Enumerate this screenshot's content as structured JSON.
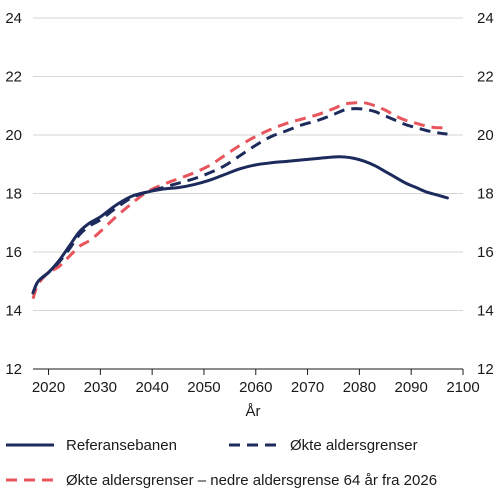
{
  "chart_data": {
    "type": "line",
    "xlabel": "År",
    "ylabel": "",
    "xlim": [
      2017,
      2100
    ],
    "ylim": [
      12,
      24
    ],
    "x_ticks": [
      2020,
      2030,
      2040,
      2050,
      2060,
      2070,
      2080,
      2090,
      2100
    ],
    "y_ticks": [
      12,
      14,
      16,
      18,
      20,
      22,
      24
    ],
    "grid": "horizontal",
    "legend_position": "bottom",
    "series": [
      {
        "name": "Referansebanen",
        "color": "#1c2a5c",
        "dash": "solid",
        "x": [
          2017,
          2018,
          2020,
          2022,
          2024,
          2026,
          2028,
          2030,
          2033,
          2036,
          2039,
          2042,
          2045,
          2048,
          2051,
          2054,
          2057,
          2060,
          2063,
          2066,
          2069,
          2072,
          2075,
          2077,
          2079,
          2081,
          2083,
          2085,
          2087,
          2089,
          2091,
          2093,
          2095,
          2097
        ],
        "y": [
          14.6,
          15.0,
          15.3,
          15.7,
          16.2,
          16.7,
          17.0,
          17.2,
          17.6,
          17.9,
          18.05,
          18.15,
          18.2,
          18.3,
          18.45,
          18.65,
          18.85,
          18.98,
          19.05,
          19.1,
          19.15,
          19.2,
          19.25,
          19.25,
          19.2,
          19.1,
          18.95,
          18.75,
          18.55,
          18.35,
          18.2,
          18.05,
          17.95,
          17.85
        ]
      },
      {
        "name": "Økte aldersgrenser",
        "color": "#1c2a5c",
        "dash": "dashed",
        "x": [
          2017,
          2018,
          2020,
          2022,
          2024,
          2026,
          2028,
          2030,
          2033,
          2036,
          2039,
          2042,
          2045,
          2048,
          2051,
          2054,
          2057,
          2060,
          2063,
          2066,
          2069,
          2072,
          2075,
          2077,
          2079,
          2081,
          2083,
          2085,
          2087,
          2089,
          2091,
          2093,
          2095,
          2097
        ],
        "y": [
          14.6,
          15.0,
          15.3,
          15.65,
          16.1,
          16.6,
          16.9,
          17.1,
          17.5,
          17.85,
          18.05,
          18.2,
          18.35,
          18.5,
          18.7,
          18.95,
          19.3,
          19.65,
          19.95,
          20.15,
          20.35,
          20.5,
          20.7,
          20.85,
          20.9,
          20.88,
          20.8,
          20.65,
          20.5,
          20.35,
          20.25,
          20.15,
          20.08,
          20.03
        ]
      },
      {
        "name": "Økte aldersgrenser – nedre aldersgrense 64 år fra 2026",
        "color": "#e8555c",
        "dash": "dashed",
        "x": [
          2017,
          2018,
          2020,
          2022,
          2024,
          2026,
          2028,
          2030,
          2033,
          2036,
          2039,
          2042,
          2045,
          2048,
          2051,
          2054,
          2057,
          2060,
          2063,
          2066,
          2069,
          2072,
          2075,
          2077,
          2079,
          2081,
          2083,
          2085,
          2087,
          2089,
          2091,
          2093,
          2095,
          2097
        ],
        "y": [
          14.4,
          14.9,
          15.3,
          15.5,
          15.85,
          16.2,
          16.4,
          16.7,
          17.2,
          17.65,
          18.05,
          18.3,
          18.5,
          18.7,
          18.95,
          19.3,
          19.65,
          19.95,
          20.2,
          20.4,
          20.55,
          20.7,
          20.9,
          21.05,
          21.1,
          21.1,
          21.0,
          20.85,
          20.65,
          20.5,
          20.4,
          20.3,
          20.25,
          20.25
        ]
      }
    ]
  }
}
